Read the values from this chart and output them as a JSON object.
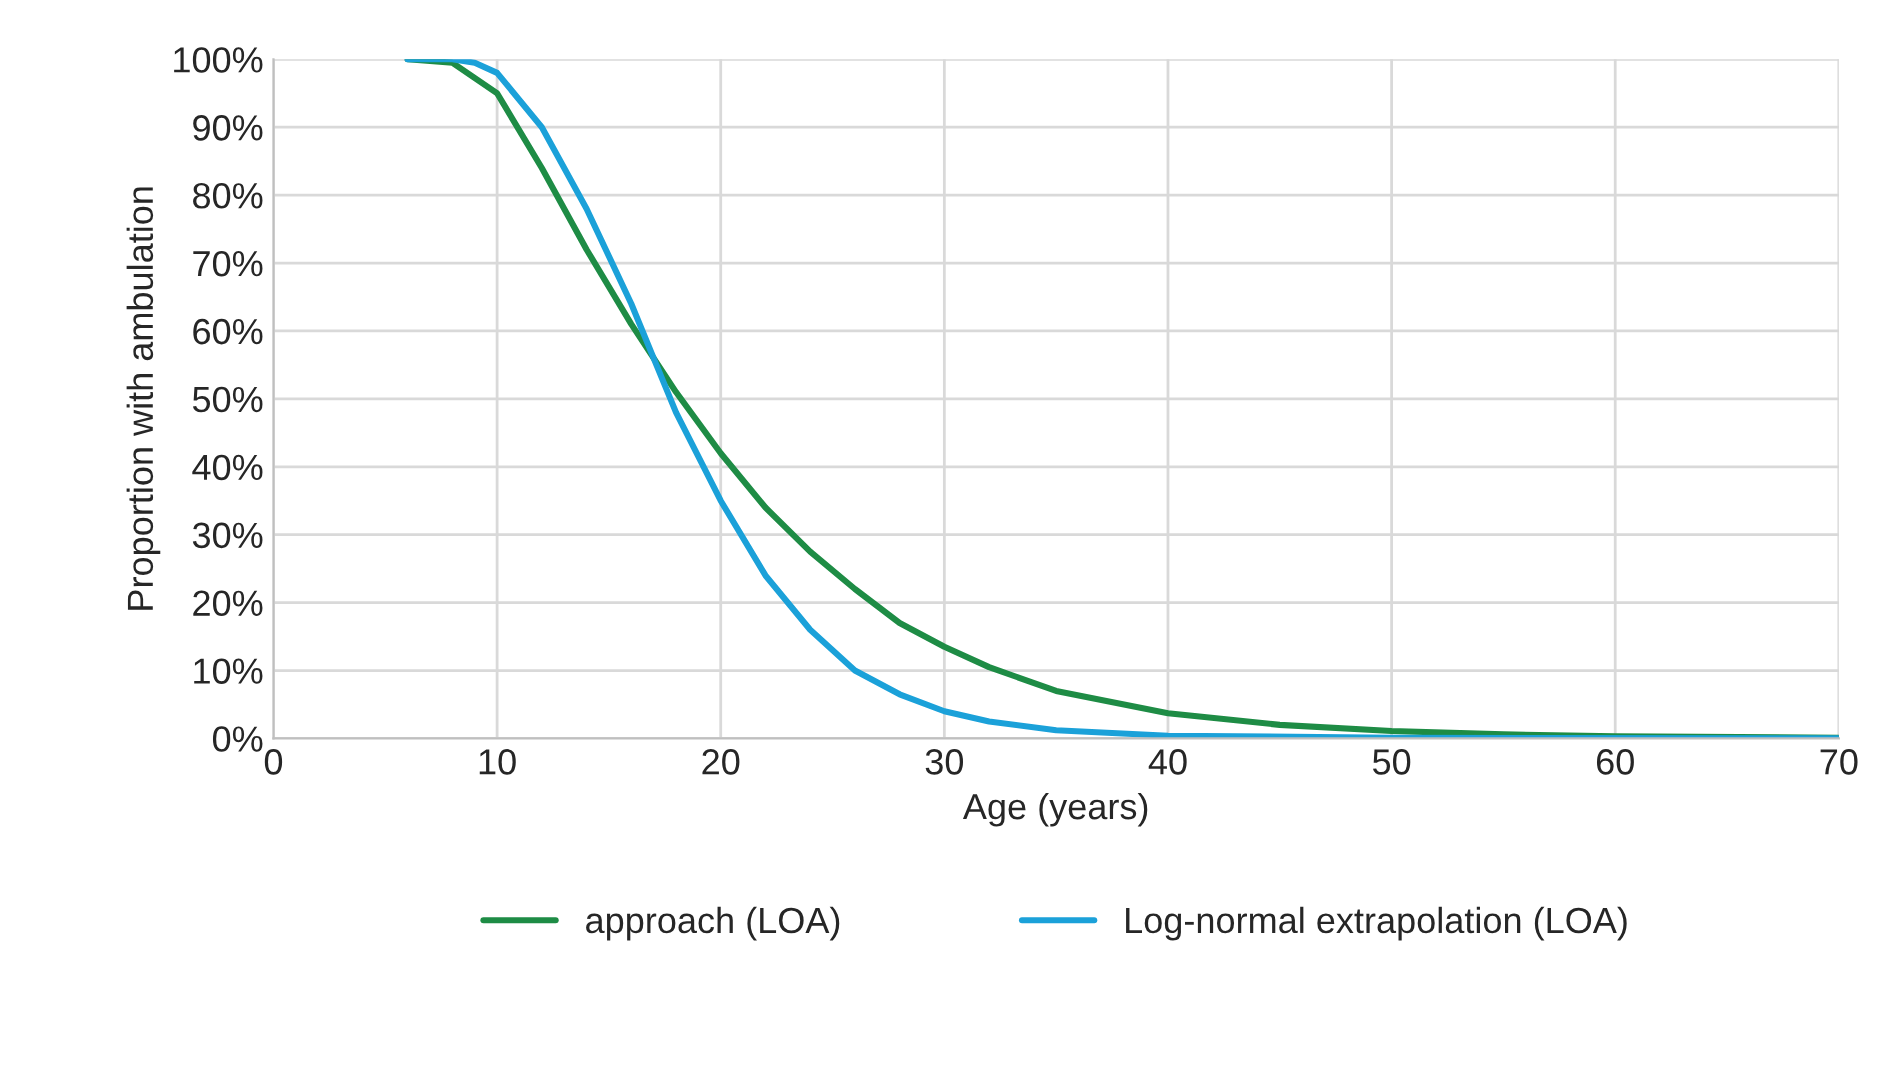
{
  "chart_data": {
    "type": "line",
    "xlabel": "Age (years)",
    "ylabel": "Proportion with ambulation",
    "series": [
      {
        "name": "approach (LOA)",
        "color": "#1e8c45",
        "x": [
          6,
          8,
          10,
          12,
          14,
          16,
          18,
          20,
          22,
          24,
          26,
          28,
          30,
          32,
          35,
          40,
          45,
          50,
          55,
          60,
          70
        ],
        "values": [
          100,
          99.5,
          95,
          84,
          72,
          61,
          51,
          42,
          34,
          27.5,
          22,
          17,
          13.5,
          10.5,
          7,
          3.7,
          2,
          1.1,
          0.6,
          0.3,
          0.1
        ]
      },
      {
        "name": "Log-normal extrapolation (LOA)",
        "color": "#1ba1d9",
        "x": [
          6,
          8,
          9,
          10,
          12,
          14,
          16,
          17,
          18,
          20,
          22,
          24,
          26,
          28,
          30,
          32,
          35,
          40,
          50,
          70
        ],
        "values": [
          100,
          100,
          99.5,
          98,
          90,
          78,
          64,
          56,
          48,
          35,
          24,
          16,
          10,
          6.5,
          4,
          2.5,
          1.2,
          0.4,
          0.1,
          0
        ]
      }
    ],
    "xlim": [
      0,
      70
    ],
    "xticks": [
      0,
      10,
      20,
      30,
      40,
      50,
      60,
      70
    ],
    "ylim": [
      0,
      100
    ],
    "yticks": [
      {
        "value": 0,
        "label": "0%"
      },
      {
        "value": 10,
        "label": "10%"
      },
      {
        "value": 20,
        "label": "20%"
      },
      {
        "value": 30,
        "label": "30%"
      },
      {
        "value": 40,
        "label": "40%"
      },
      {
        "value": 50,
        "label": "50%"
      },
      {
        "value": 60,
        "label": "60%"
      },
      {
        "value": 70,
        "label": "70%"
      },
      {
        "value": 80,
        "label": "80%"
      },
      {
        "value": 90,
        "label": "90%"
      },
      {
        "value": 100,
        "label": "100%"
      }
    ],
    "grid": true,
    "legend": "bottom",
    "marker": "none",
    "line_style": "solid"
  }
}
